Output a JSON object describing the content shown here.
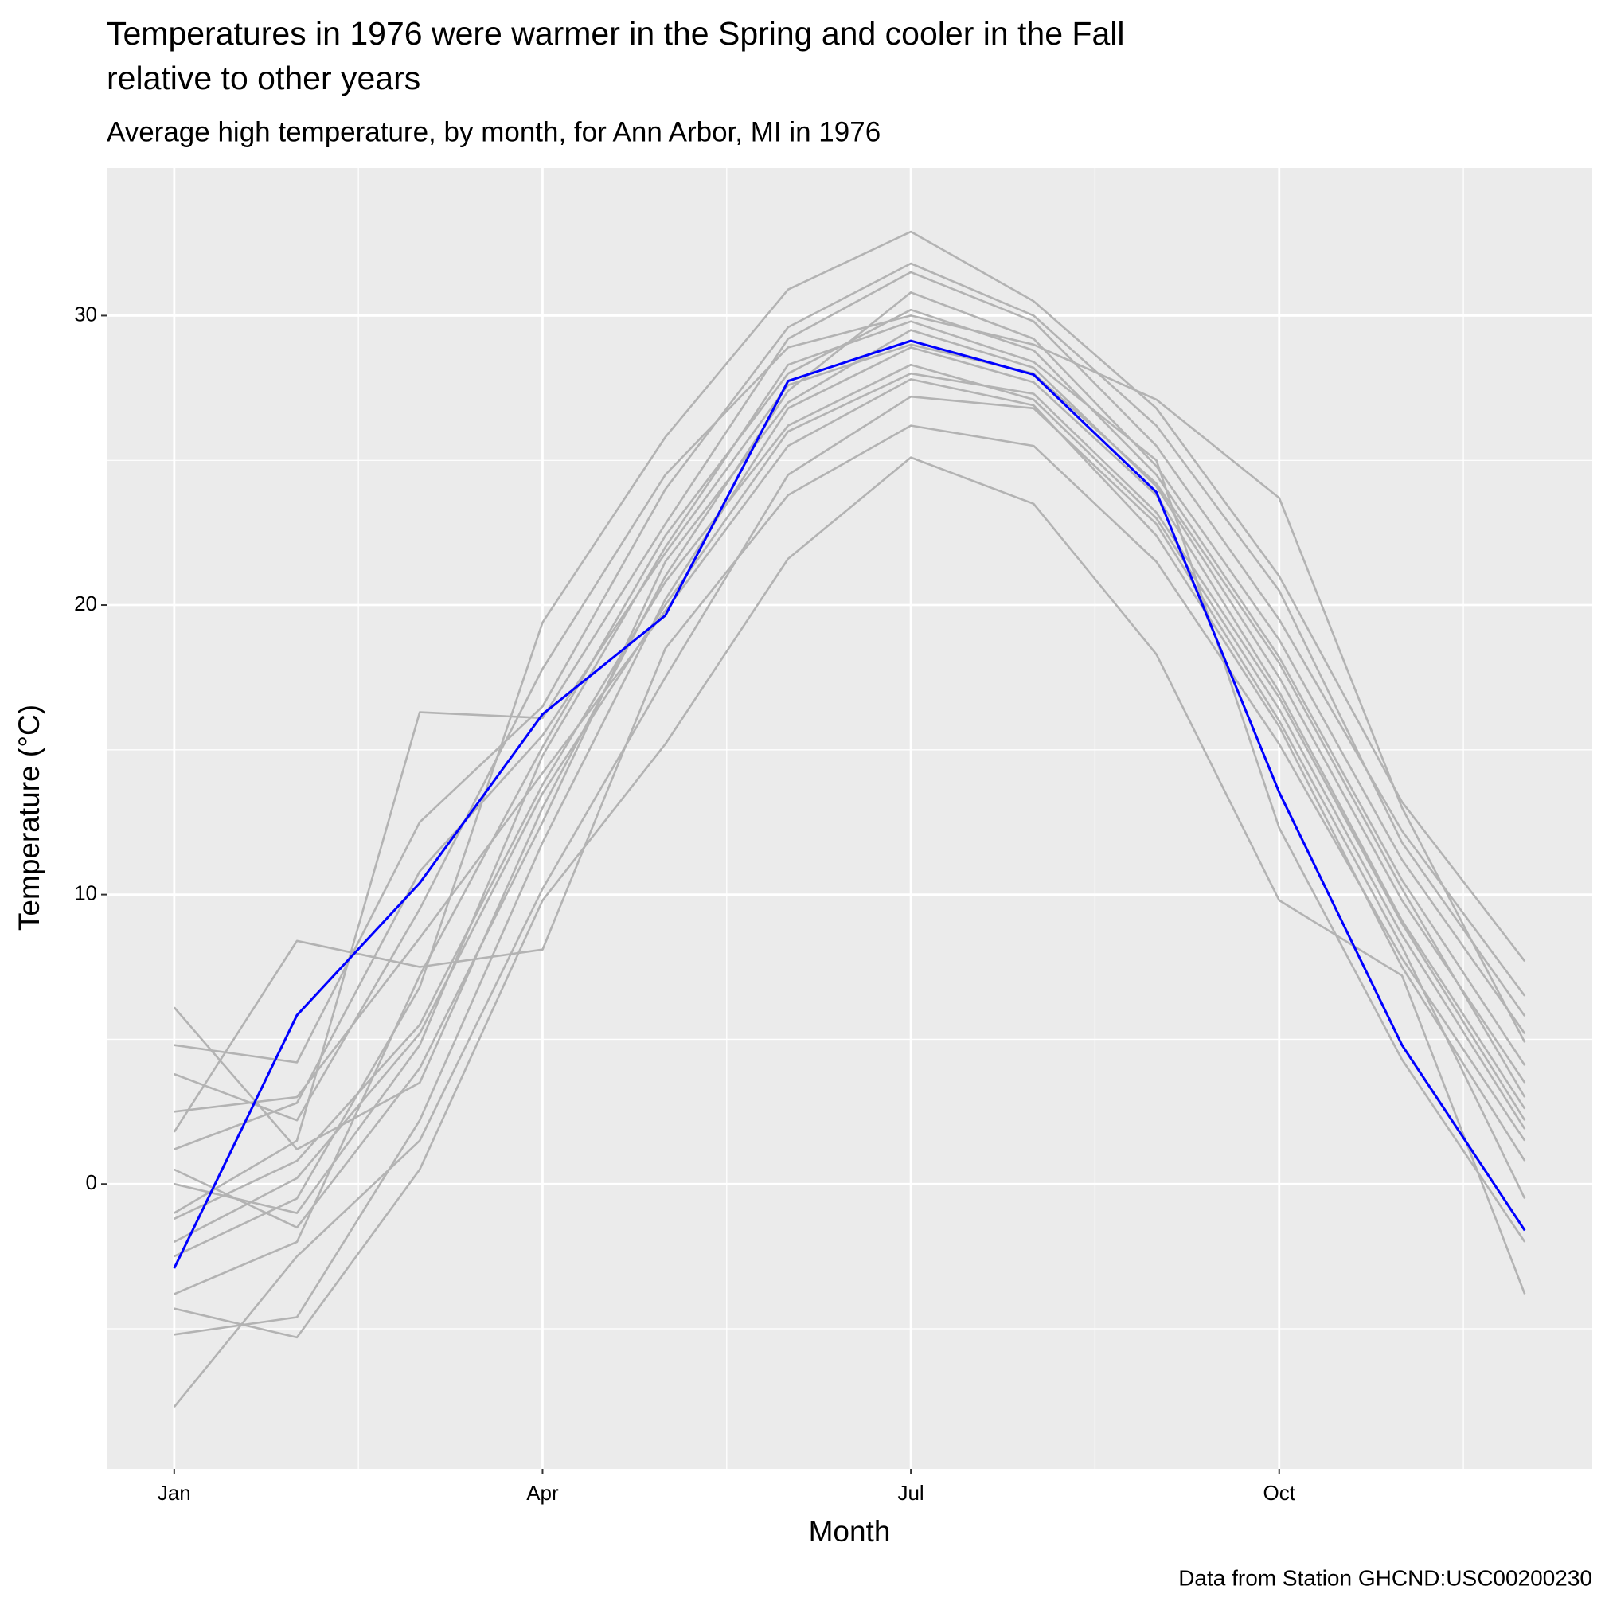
{
  "chart_data": {
    "type": "line",
    "title": [
      "Temperatures in 1976 were warmer in the Spring and cooler in the Fall",
      "relative to other years"
    ],
    "subtitle": "Average high temperature, by month, for Ann Arbor, MI in 1976",
    "x_label": "Month",
    "y_label": "Temperature (°C)",
    "caption": "Data from Station GHCND:USC00200230",
    "categories": [
      "Jan",
      null,
      null,
      "Apr",
      null,
      null,
      "Jul",
      null,
      null,
      "Oct",
      null,
      null
    ],
    "ylim": [
      -9.84,
      35.1
    ],
    "yticks": [
      0,
      10,
      20,
      30
    ],
    "y_minor_ticks": [
      -5,
      5,
      15,
      25
    ],
    "grid": true,
    "series": [
      {
        "color": "#b3b3b3",
        "values": [
          -1.2,
          0.8,
          5.5,
          13.8,
          20.8,
          26.2,
          28.3,
          27.1,
          23.0,
          16.4,
          8.6,
          1.9
        ]
      },
      {
        "color": "#b3b3b3",
        "values": [
          0.5,
          -1.5,
          4.0,
          12.5,
          21.5,
          27.0,
          29.5,
          28.2,
          24.1,
          17.5,
          9.8,
          3.5
        ]
      },
      {
        "color": "#b3b3b3",
        "values": [
          -3.8,
          -2.0,
          7.2,
          15.1,
          22.4,
          28.0,
          30.2,
          28.8,
          24.5,
          18.2,
          10.5,
          4.1
        ]
      },
      {
        "color": "#b3b3b3",
        "values": [
          2.5,
          3.0,
          8.5,
          14.2,
          19.8,
          25.5,
          27.8,
          26.9,
          22.4,
          15.8,
          7.5,
          0.8
        ]
      },
      {
        "color": "#b3b3b3",
        "values": [
          -5.2,
          -4.6,
          2.2,
          11.8,
          20.2,
          26.8,
          28.9,
          27.7,
          23.8,
          17.0,
          9.1,
          2.6
        ]
      },
      {
        "color": "#b3b3b3",
        "values": [
          6.1,
          1.2,
          3.5,
          13.0,
          21.0,
          27.4,
          30.8,
          29.2,
          24.8,
          18.8,
          11.2,
          5.2
        ]
      },
      {
        "color": "#b3b3b3",
        "values": [
          -7.7,
          -2.5,
          1.5,
          10.2,
          17.5,
          24.5,
          27.2,
          26.8,
          22.8,
          16.0,
          8.2,
          -0.5
        ]
      },
      {
        "color": "#b3b3b3",
        "values": [
          1.8,
          8.4,
          7.5,
          8.1,
          18.5,
          23.8,
          26.2,
          25.5,
          21.5,
          15.2,
          7.8,
          1.5
        ]
      },
      {
        "color": "#b3b3b3",
        "values": [
          -1.0,
          1.5,
          16.3,
          16.1,
          22.8,
          29.2,
          31.5,
          29.8,
          25.5,
          19.5,
          12.2,
          6.5
        ]
      },
      {
        "color": "#b3b3b3",
        "values": [
          -2.5,
          -0.5,
          6.8,
          19.4,
          25.8,
          30.9,
          32.9,
          30.5,
          26.8,
          21.0,
          13.2,
          7.7
        ]
      },
      {
        "color": "#b3b3b3",
        "values": [
          3.8,
          2.2,
          9.5,
          17.8,
          24.5,
          28.9,
          30.0,
          29.0,
          27.1,
          23.7,
          13.0,
          4.9
        ]
      },
      {
        "color": "#b3b3b3",
        "values": [
          -4.3,
          -5.3,
          0.5,
          9.8,
          15.2,
          21.6,
          25.1,
          23.5,
          18.3,
          9.8,
          7.2,
          -3.8
        ]
      },
      {
        "color": "#b3b3b3",
        "values": [
          0.0,
          -1.0,
          4.8,
          14.8,
          22.0,
          28.3,
          29.8,
          28.4,
          25.0,
          12.3,
          4.3,
          -2.0
        ]
      },
      {
        "color": "#b3b3b3",
        "values": [
          4.8,
          4.2,
          12.5,
          16.5,
          24.0,
          29.6,
          31.8,
          30.0,
          26.2,
          20.5,
          11.8,
          5.8
        ]
      },
      {
        "color": "#b3b3b3",
        "values": [
          -2.0,
          0.2,
          5.2,
          13.5,
          20.0,
          26.0,
          28.0,
          27.3,
          23.2,
          16.8,
          9.0,
          2.2
        ]
      },
      {
        "color": "#b3b3b3",
        "values": [
          1.2,
          2.8,
          10.8,
          15.5,
          21.8,
          27.6,
          29.0,
          28.0,
          24.2,
          18.0,
          10.2,
          3.0
        ]
      },
      {
        "color": "#0000ff",
        "values": [
          -2.91,
          5.83,
          10.4,
          16.23,
          19.64,
          27.74,
          29.13,
          27.96,
          23.9,
          13.53,
          4.8,
          -1.6
        ]
      }
    ]
  }
}
